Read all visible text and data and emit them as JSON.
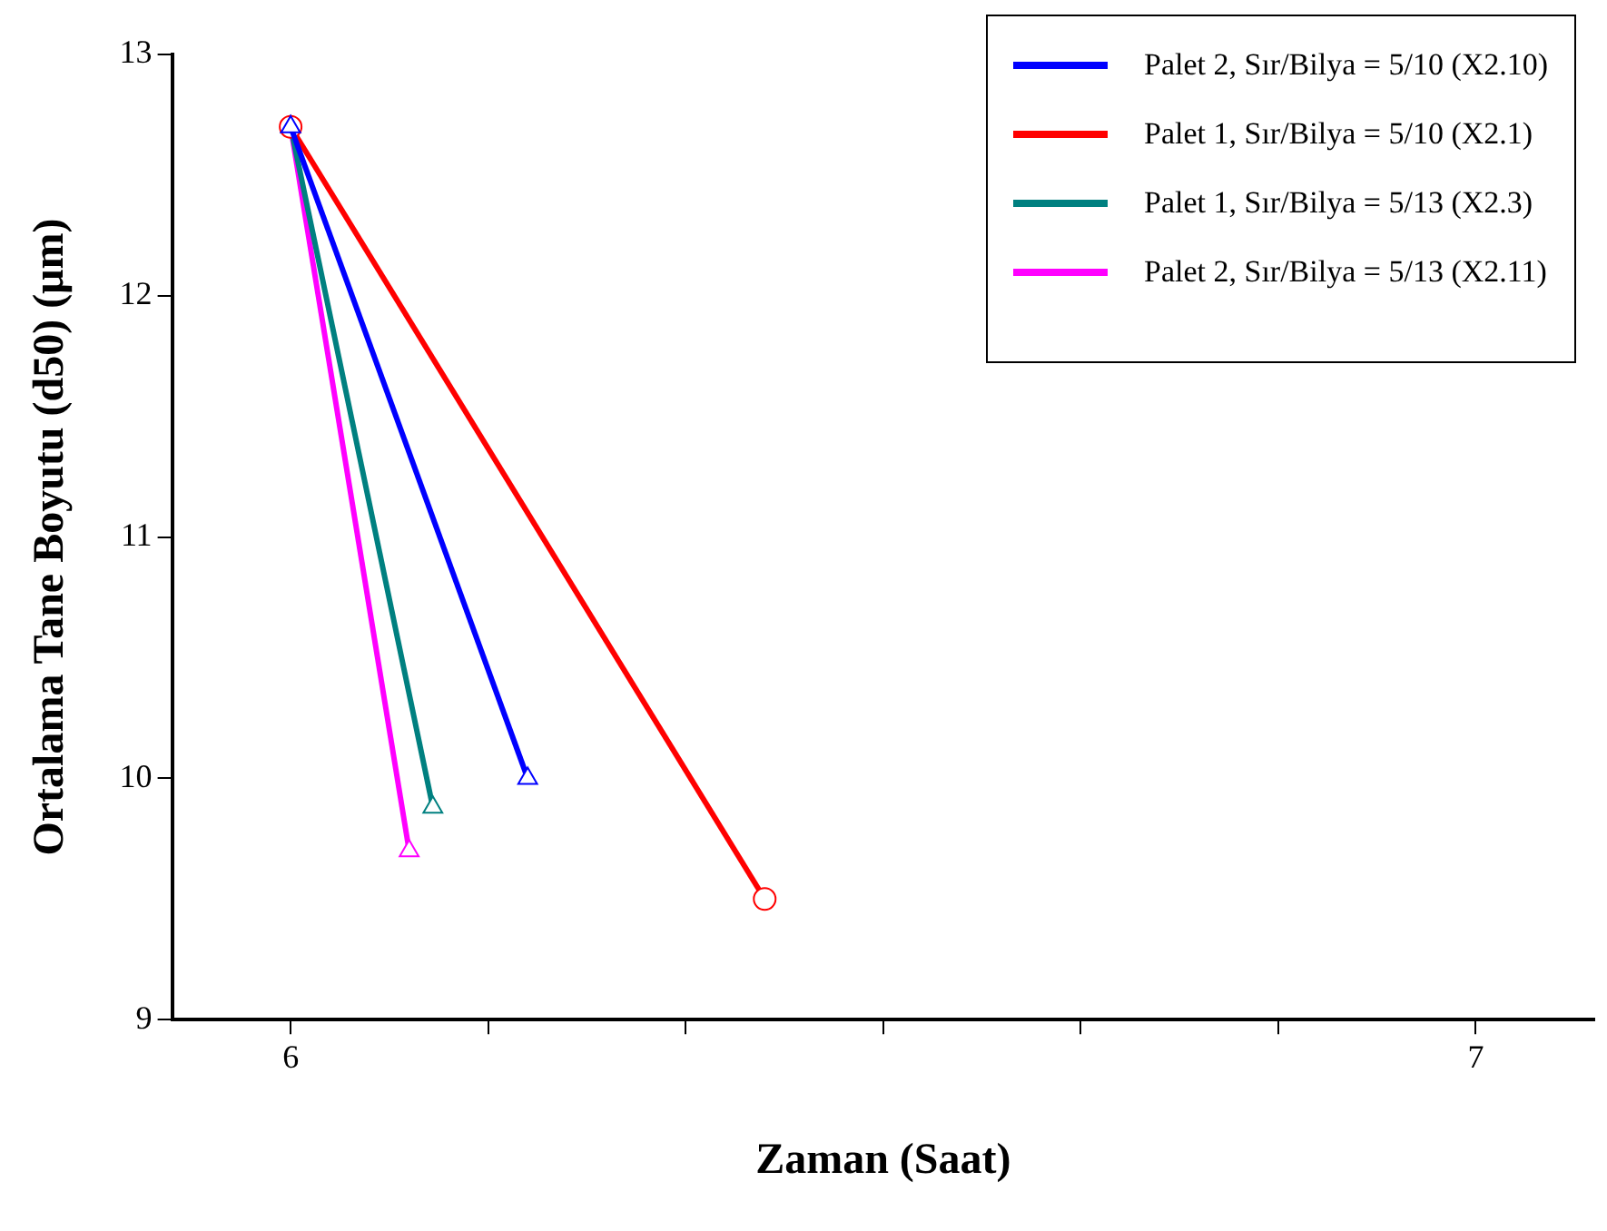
{
  "chart_data": {
    "type": "line",
    "xlabel": "Zaman (Saat)",
    "ylabel": "Ortalama Tane Boyutu (d50) (μm)",
    "xlim": [
      5.9,
      7.1
    ],
    "xticks": [
      6,
      {
        "value": 6.1667,
        "label": null
      },
      {
        "value": 6.3333,
        "label": null
      },
      {
        "value": 6.5,
        "label": null
      },
      {
        "value": 6.6667,
        "label": null
      },
      {
        "value": 6.8333,
        "label": null
      },
      7
    ],
    "ylim": [
      9,
      13
    ],
    "yticks": [
      9,
      10,
      11,
      12,
      13
    ],
    "grid": false,
    "legend": "top right",
    "line_style": "solid",
    "series": [
      {
        "name": "Palet 2, Sır/Bilya = 5/10 (X2.10)",
        "color": "#0000ff",
        "marker": "triangle",
        "x": [
          6,
          6.2
        ],
        "values": [
          12.7,
          10.0
        ]
      },
      {
        "name": "Palet 1, Sır/Bilya = 5/10 (X2.1)",
        "color": "#ff0000",
        "marker": "circle",
        "x": [
          6,
          6.4
        ],
        "values": [
          12.7,
          9.5
        ]
      },
      {
        "name": "Palet 1,  Sır/Bilya = 5/13 (X2.3)",
        "color": "#008080",
        "marker": "triangle",
        "x": [
          6,
          6.12
        ],
        "values": [
          12.7,
          9.88
        ]
      },
      {
        "name": "Palet 2, Sır/Bilya = 5/13 (X2.11)",
        "color": "#ff00ff",
        "marker": "triangle",
        "x": [
          6,
          6.1
        ],
        "values": [
          12.7,
          9.7
        ]
      }
    ]
  }
}
